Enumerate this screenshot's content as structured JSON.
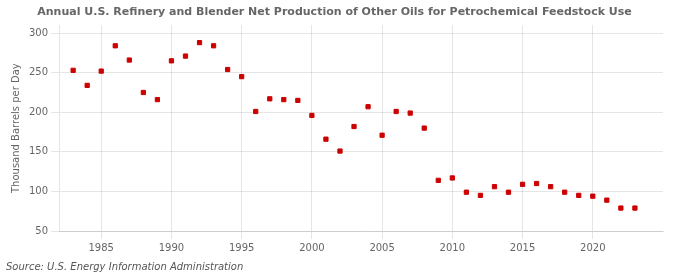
{
  "chart_data": {
    "type": "scatter",
    "title": "Annual U.S. Refinery and Blender Net Production of Other Oils for Petrochemical Feedstock Use",
    "ylabel": "Thousand Barrels per Day",
    "annotation": "Source: U.S. Energy Information Administration",
    "x": [
      1983,
      1984,
      1985,
      1986,
      1987,
      1988,
      1989,
      1990,
      1991,
      1992,
      1993,
      1994,
      1995,
      1996,
      1997,
      1998,
      1999,
      2000,
      2001,
      2002,
      2003,
      2004,
      2005,
      2006,
      2007,
      2008,
      2009,
      2010,
      2011,
      2012,
      2013,
      2014,
      2015,
      2016,
      2017,
      2018,
      2019,
      2020,
      2021,
      2022,
      2023
    ],
    "values": [
      253,
      234,
      252,
      284,
      266,
      225,
      216,
      265,
      271,
      288,
      284,
      254,
      245,
      201,
      217,
      216,
      215,
      196,
      166,
      151,
      182,
      207,
      171,
      201,
      199,
      180,
      114,
      117,
      99,
      95,
      106,
      99,
      109,
      110,
      106,
      99,
      95,
      94,
      89,
      79,
      79
    ],
    "color": "#cc0000",
    "marker": "square",
    "xlim": [
      1982,
      2025
    ],
    "ylim": [
      50,
      310
    ],
    "xticks": [
      1985,
      1990,
      1995,
      2000,
      2005,
      2010,
      2015,
      2020
    ],
    "yticks": [
      50,
      100,
      150,
      200,
      250,
      300
    ],
    "grid": true
  }
}
